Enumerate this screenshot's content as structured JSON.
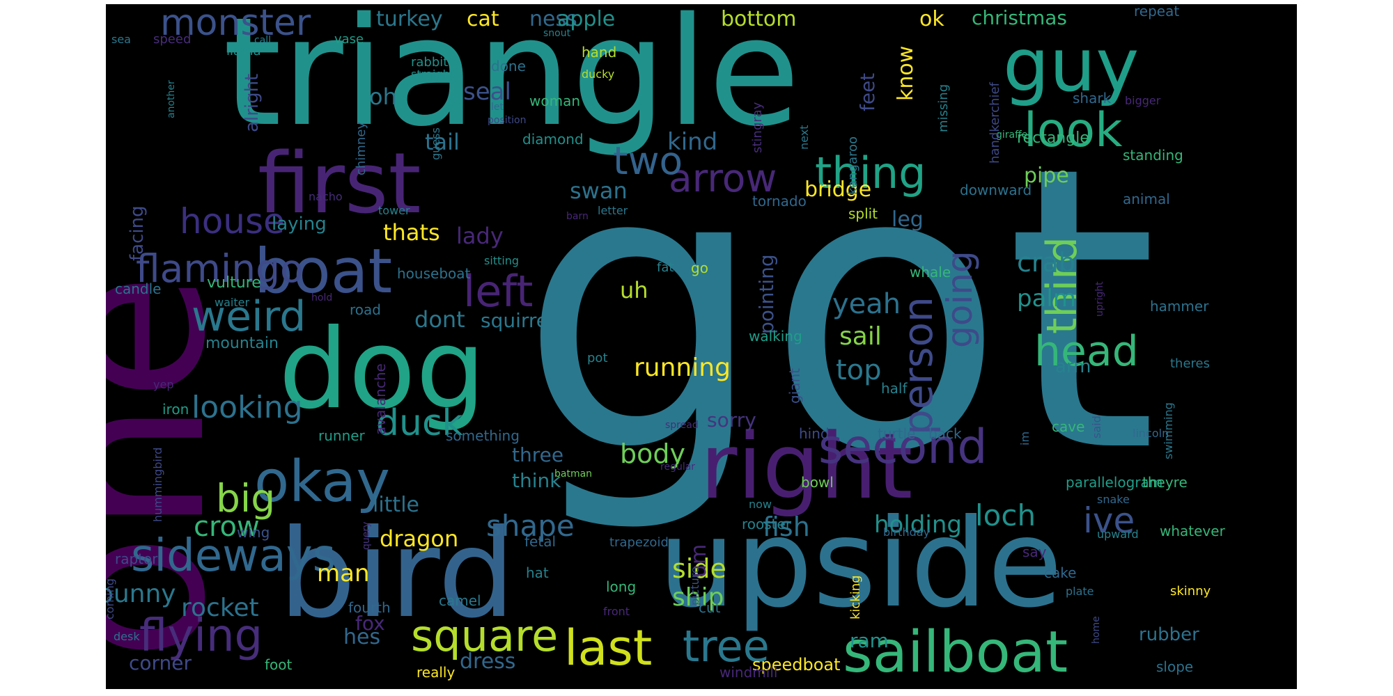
{
  "cloud": {
    "background": "#000000",
    "palette": {
      "purple": "#440154",
      "indigo": "#472d7b",
      "violet": "#3b2f80",
      "blue": "#3b528b",
      "slate": "#31688e",
      "teal": "#26828e",
      "cyan": "#1f9e89",
      "green": "#35b779",
      "lime": "#6ece58",
      "yellowgreen": "#b5de2b",
      "yellow": "#fde725"
    },
    "words": [
      {
        "text": "got",
        "color": "#2a788e"
      },
      {
        "text": "one",
        "color": "#440154"
      },
      {
        "text": "triangle",
        "color": "#21918c"
      },
      {
        "text": "upside",
        "color": "#2c728e"
      },
      {
        "text": "bird",
        "color": "#33638d"
      },
      {
        "text": "dog",
        "color": "#20a386"
      },
      {
        "text": "first",
        "color": "#482475"
      },
      {
        "text": "right",
        "color": "#481f70"
      },
      {
        "text": "guy",
        "color": "#1f9e89"
      },
      {
        "text": "sailboat",
        "color": "#35b779"
      },
      {
        "text": "boat",
        "color": "#3b528b"
      },
      {
        "text": "okay",
        "color": "#31688e"
      },
      {
        "text": "sideways",
        "color": "#31688e"
      },
      {
        "text": "second",
        "color": "#46337f"
      },
      {
        "text": "flamingo",
        "color": "#3e4a89"
      },
      {
        "text": "monster",
        "color": "#3b528b"
      },
      {
        "text": "weird",
        "color": "#2a788e"
      },
      {
        "text": "thing",
        "color": "#20a386"
      },
      {
        "text": "look",
        "color": "#26ad81"
      },
      {
        "text": "square",
        "color": "#b5de2b"
      },
      {
        "text": "last",
        "color": "#d0e11c"
      },
      {
        "text": "tree",
        "color": "#2a788e"
      },
      {
        "text": "flying",
        "color": "#472d7b"
      },
      {
        "text": "head",
        "color": "#35b779"
      },
      {
        "text": "person",
        "color": "#3e4a89"
      },
      {
        "text": "going",
        "color": "#3e4a89"
      },
      {
        "text": "third",
        "color": "#6ece58"
      },
      {
        "text": "house",
        "color": "#3b2f80"
      },
      {
        "text": "arrow",
        "color": "#482878"
      },
      {
        "text": "two",
        "color": "#33638d"
      },
      {
        "text": "left",
        "color": "#482475"
      },
      {
        "text": "big",
        "color": "#86d549"
      },
      {
        "text": "duck",
        "color": "#21918c"
      },
      {
        "text": "looking",
        "color": "#2c728e"
      },
      {
        "text": "ive",
        "color": "#3b528b"
      },
      {
        "text": "loch",
        "color": "#21918c"
      },
      {
        "text": "shape",
        "color": "#31688e"
      },
      {
        "text": "crow",
        "color": "#35b779"
      },
      {
        "text": "rocket",
        "color": "#2c728e"
      },
      {
        "text": "bunny",
        "color": "#2a788e"
      },
      {
        "text": "body",
        "color": "#6ece58"
      },
      {
        "text": "running",
        "color": "#fde725"
      },
      {
        "text": "yeah",
        "color": "#2c728e"
      },
      {
        "text": "sail",
        "color": "#86d549"
      },
      {
        "text": "top",
        "color": "#2a788e"
      },
      {
        "text": "crab",
        "color": "#26828e"
      },
      {
        "text": "palm",
        "color": "#21918c"
      },
      {
        "text": "fish",
        "color": "#2c728e"
      },
      {
        "text": "holding",
        "color": "#21918c"
      },
      {
        "text": "dragon",
        "color": "#fde725"
      },
      {
        "text": "side",
        "color": "#b5de2b"
      },
      {
        "text": "ship",
        "color": "#6ece58"
      },
      {
        "text": "man",
        "color": "#fde725"
      },
      {
        "text": "swan",
        "color": "#2c728e"
      },
      {
        "text": "seal",
        "color": "#3b528b"
      },
      {
        "text": "bridge",
        "color": "#fde725"
      },
      {
        "text": "kind",
        "color": "#31688e"
      },
      {
        "text": "thats",
        "color": "#fde725"
      },
      {
        "text": "lady",
        "color": "#482878"
      },
      {
        "text": "tail",
        "color": "#2c728e"
      },
      {
        "text": "dont",
        "color": "#2a788e"
      },
      {
        "text": "squirrel",
        "color": "#2a788e"
      },
      {
        "text": "uh",
        "color": "#b5de2b"
      },
      {
        "text": "ness",
        "color": "#31688e"
      },
      {
        "text": "cat",
        "color": "#fde725"
      },
      {
        "text": "apple",
        "color": "#21918c"
      },
      {
        "text": "bottom",
        "color": "#b5de2b"
      },
      {
        "text": "turkey",
        "color": "#2a788e"
      },
      {
        "text": "ok",
        "color": "#fde725"
      },
      {
        "text": "christmas",
        "color": "#35b779"
      },
      {
        "text": "pipe",
        "color": "#6ece58"
      },
      {
        "text": "leg",
        "color": "#31688e"
      },
      {
        "text": "know",
        "color": "#fde725"
      },
      {
        "text": "feet",
        "color": "#3e4a89"
      },
      {
        "text": "laying",
        "color": "#26828e"
      },
      {
        "text": "facing",
        "color": "#3e4a89"
      },
      {
        "text": "alright",
        "color": "#3e4a89"
      },
      {
        "text": "oh",
        "color": "#2a788e"
      },
      {
        "text": "um",
        "color": "#482878"
      },
      {
        "text": "pointing",
        "color": "#3b528b"
      },
      {
        "text": "hes",
        "color": "#31688e"
      },
      {
        "text": "dress",
        "color": "#31688e"
      },
      {
        "text": "fox",
        "color": "#482878"
      },
      {
        "text": "corner",
        "color": "#3e4a89"
      },
      {
        "text": "little",
        "color": "#2c728e"
      },
      {
        "text": "think",
        "color": "#26828e"
      },
      {
        "text": "three",
        "color": "#31688e"
      },
      {
        "text": "sorry",
        "color": "#46337f"
      },
      {
        "text": "ram",
        "color": "#21918c"
      },
      {
        "text": "rubber",
        "color": "#2c728e"
      },
      {
        "text": "speedboat",
        "color": "#fde725"
      },
      {
        "text": "rectangle",
        "color": "#35b779"
      },
      {
        "text": "mountain",
        "color": "#26828e"
      },
      {
        "text": "vulture",
        "color": "#35b779"
      },
      {
        "text": "diamond",
        "color": "#21918c"
      },
      {
        "text": "woman",
        "color": "#35b779"
      },
      {
        "text": "hand",
        "color": "#b5de2b"
      },
      {
        "text": "done",
        "color": "#2c728e"
      },
      {
        "text": "rabbit",
        "color": "#21918c"
      },
      {
        "text": "straight",
        "color": "#21918c"
      },
      {
        "text": "ducky",
        "color": "#b5de2b"
      },
      {
        "text": "llama",
        "color": "#21918c"
      },
      {
        "text": "speed",
        "color": "#472d7b"
      },
      {
        "text": "vase",
        "color": "#1f9e89"
      },
      {
        "text": "sea",
        "color": "#2a788e"
      },
      {
        "text": "call",
        "color": "#26828e"
      },
      {
        "text": "snout",
        "color": "#26828e"
      },
      {
        "text": "repeat",
        "color": "#31688e"
      },
      {
        "text": "shark",
        "color": "#31688e"
      },
      {
        "text": "bigger",
        "color": "#482878"
      },
      {
        "text": "giraffe",
        "color": "#35b779"
      },
      {
        "text": "standing",
        "color": "#35b779"
      },
      {
        "text": "animal",
        "color": "#31688e"
      },
      {
        "text": "downward",
        "color": "#2c728e"
      },
      {
        "text": "tornado",
        "color": "#31688e"
      },
      {
        "text": "split",
        "color": "#b5de2b"
      },
      {
        "text": "kangaroo",
        "color": "#2a788e"
      },
      {
        "text": "stingray",
        "color": "#472d7b"
      },
      {
        "text": "next",
        "color": "#2a788e"
      },
      {
        "text": "missing",
        "color": "#26828e"
      },
      {
        "text": "handkerchief",
        "color": "#3e4a89"
      },
      {
        "text": "chimney",
        "color": "#31688e"
      },
      {
        "text": "guess",
        "color": "#2a788e"
      },
      {
        "text": "let",
        "color": "#31688e"
      },
      {
        "text": "position",
        "color": "#3e4a89"
      },
      {
        "text": "another",
        "color": "#26828e"
      },
      {
        "text": "nacho",
        "color": "#472d7b"
      },
      {
        "text": "tower",
        "color": "#26828e"
      },
      {
        "text": "barn",
        "color": "#482878"
      },
      {
        "text": "letter",
        "color": "#2a788e"
      },
      {
        "text": "houseboat",
        "color": "#2c728e"
      },
      {
        "text": "sitting",
        "color": "#21918c"
      },
      {
        "text": "candle",
        "color": "#2c728e"
      },
      {
        "text": "waiter",
        "color": "#26828e"
      },
      {
        "text": "hold",
        "color": "#482878"
      },
      {
        "text": "fat",
        "color": "#26828e"
      },
      {
        "text": "go",
        "color": "#b5de2b"
      },
      {
        "text": "whale",
        "color": "#35b779"
      },
      {
        "text": "upright",
        "color": "#482878"
      },
      {
        "text": "hammer",
        "color": "#2c728e"
      },
      {
        "text": "road",
        "color": "#2c728e"
      },
      {
        "text": "walking",
        "color": "#1f9e89"
      },
      {
        "text": "giant",
        "color": "#3b528b"
      },
      {
        "text": "avalanche",
        "color": "#482878"
      },
      {
        "text": "theres",
        "color": "#2a788e"
      },
      {
        "text": "arm",
        "color": "#26828e"
      },
      {
        "text": "swimming",
        "color": "#2a788e"
      },
      {
        "text": "yep",
        "color": "#482878"
      },
      {
        "text": "iron",
        "color": "#1f9e89"
      },
      {
        "text": "hummingbird",
        "color": "#3e4a89"
      },
      {
        "text": "runner",
        "color": "#1f9e89"
      },
      {
        "text": "something",
        "color": "#31688e"
      },
      {
        "text": "pot",
        "color": "#26828e"
      },
      {
        "text": "half",
        "color": "#26828e"
      },
      {
        "text": "hind",
        "color": "#3e4a89"
      },
      {
        "text": "turtle",
        "color": "#31688e"
      },
      {
        "text": "back",
        "color": "#31688e"
      },
      {
        "text": "im",
        "color": "#31688e"
      },
      {
        "text": "cave",
        "color": "#35b779"
      },
      {
        "text": "said",
        "color": "#3b528b"
      },
      {
        "text": "lincoln",
        "color": "#31688e"
      },
      {
        "text": "spread",
        "color": "#472d7b"
      },
      {
        "text": "regular",
        "color": "#472d7b"
      },
      {
        "text": "batman",
        "color": "#6ece58"
      },
      {
        "text": "bowl",
        "color": "#6ece58"
      },
      {
        "text": "parallelogram",
        "color": "#1f9e89"
      },
      {
        "text": "theyre",
        "color": "#35b779"
      },
      {
        "text": "snake",
        "color": "#31688e"
      },
      {
        "text": "now",
        "color": "#26828e"
      },
      {
        "text": "query",
        "color": "#46337f"
      },
      {
        "text": "wing",
        "color": "#3b528b"
      },
      {
        "text": "raptor",
        "color": "#3e4a89"
      },
      {
        "text": "fetal",
        "color": "#31688e"
      },
      {
        "text": "trapezoid",
        "color": "#31688e"
      },
      {
        "text": "rooster",
        "color": "#26828e"
      },
      {
        "text": "picture",
        "color": "#3b528b"
      },
      {
        "text": "birthday",
        "color": "#31688e"
      },
      {
        "text": "upward",
        "color": "#26828e"
      },
      {
        "text": "whatever",
        "color": "#35b779"
      },
      {
        "text": "say",
        "color": "#482878"
      },
      {
        "text": "hat",
        "color": "#26828e"
      },
      {
        "text": "camel",
        "color": "#2a788e"
      },
      {
        "text": "long",
        "color": "#35b779"
      },
      {
        "text": "cut",
        "color": "#2c728e"
      },
      {
        "text": "cake",
        "color": "#31688e"
      },
      {
        "text": "kicking",
        "color": "#fde725"
      },
      {
        "text": "plate",
        "color": "#2c728e"
      },
      {
        "text": "skinny",
        "color": "#fde725"
      },
      {
        "text": "fourth",
        "color": "#31688e"
      },
      {
        "text": "front",
        "color": "#482878"
      },
      {
        "text": "coming",
        "color": "#3e4a89"
      },
      {
        "text": "desk",
        "color": "#2c728e"
      },
      {
        "text": "foot",
        "color": "#35b779"
      },
      {
        "text": "really",
        "color": "#fde725"
      },
      {
        "text": "windmill",
        "color": "#482878"
      },
      {
        "text": "home",
        "color": "#3e4a89"
      },
      {
        "text": "slope",
        "color": "#2c728e"
      }
    ]
  }
}
